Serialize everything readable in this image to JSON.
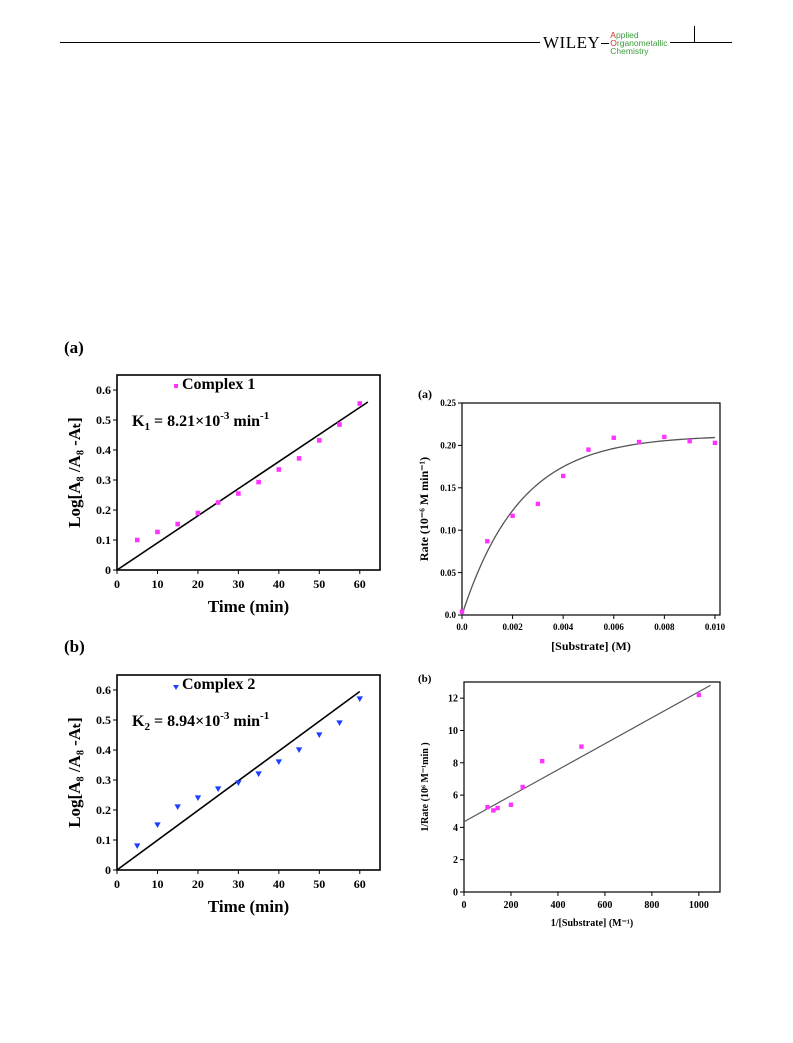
{
  "header": {
    "publisher": "WILEY",
    "journal_lines": [
      {
        "cap": "A",
        "rest": "pplied"
      },
      {
        "cap": "O",
        "rest": "rganometallic"
      },
      {
        "cap": "",
        "rest": "Chemistry"
      }
    ]
  },
  "chart_data": [
    {
      "panel_label": "(a)",
      "type": "scatter",
      "xlabel": "Time (min)",
      "ylabel": "Log[A₈ /A₈ -Aₜ]",
      "xlim": [
        0,
        65
      ],
      "ylim": [
        0,
        0.65
      ],
      "xticks": [
        0,
        10,
        20,
        30,
        40,
        50,
        60
      ],
      "yticks": [
        0,
        0.1,
        0.2,
        0.3,
        0.4,
        0.5,
        0.6
      ],
      "ytick_labels": [
        "0",
        "0.1",
        "0.2",
        "0.3",
        "0.4",
        "0.5",
        "0.6"
      ],
      "legend": "Complex 1",
      "annotation": {
        "prefix": "K",
        "sub": "1",
        "middle": " = 8.21×10",
        "sup": "-3",
        "suffix": " min",
        "sup2": "-1"
      },
      "series": [
        {
          "name": "Complex 1",
          "marker": "square",
          "color": "#ff33ff",
          "x": [
            5,
            10,
            15,
            20,
            25,
            30,
            35,
            40,
            45,
            50,
            55,
            60
          ],
          "y": [
            0.1,
            0.127,
            0.153,
            0.19,
            0.225,
            0.255,
            0.293,
            0.335,
            0.372,
            0.432,
            0.485,
            0.555
          ]
        }
      ],
      "fit_line": {
        "x": [
          0,
          62
        ],
        "y": [
          0.0,
          0.56
        ]
      }
    },
    {
      "panel_label": "(b)",
      "type": "scatter",
      "xlabel": "Time (min)",
      "ylabel": "Log[A₈ /A₈ -Aₜ]",
      "xlim": [
        0,
        65
      ],
      "ylim": [
        0,
        0.65
      ],
      "xticks": [
        0,
        10,
        20,
        30,
        40,
        50,
        60
      ],
      "yticks": [
        0,
        0.1,
        0.2,
        0.3,
        0.4,
        0.5,
        0.6
      ],
      "ytick_labels": [
        "0",
        "0.1",
        "0.2",
        "0.3",
        "0.4",
        "0.5",
        "0.6"
      ],
      "legend": "Complex 2",
      "annotation": {
        "prefix": "K",
        "sub": "2",
        "middle": " = 8.94×10",
        "sup": "-3",
        "suffix": " min",
        "sup2": "-1"
      },
      "series": [
        {
          "name": "Complex 2",
          "marker": "triangle-down",
          "color": "#1a3fff",
          "x": [
            5,
            10,
            15,
            20,
            25,
            30,
            35,
            40,
            45,
            50,
            55,
            60
          ],
          "y": [
            0.08,
            0.15,
            0.21,
            0.24,
            0.27,
            0.29,
            0.32,
            0.36,
            0.4,
            0.45,
            0.49,
            0.57
          ]
        }
      ],
      "fit_line": {
        "x": [
          0,
          60
        ],
        "y": [
          0.0,
          0.595
        ]
      }
    },
    {
      "panel_label": "(a)",
      "type": "scatter",
      "xlabel": "[Substrate] (M)",
      "ylabel": "Rate (10⁻⁶ M min⁻¹)",
      "xlim": [
        0,
        0.0102
      ],
      "ylim": [
        0,
        0.25
      ],
      "xticks": [
        0,
        0.002,
        0.004,
        0.006,
        0.008,
        0.01
      ],
      "xtick_labels": [
        "0.0",
        "0.002",
        "0.004",
        "0.006",
        "0.008",
        "0.010"
      ],
      "yticks": [
        0,
        0.05,
        0.1,
        0.15,
        0.2,
        0.25
      ],
      "ytick_labels": [
        "0.0",
        "0.05",
        "0.10",
        "0.15",
        "0.20",
        "0.25"
      ],
      "series": [
        {
          "name": "",
          "marker": "square",
          "color": "#ff33ff",
          "x": [
            0.0,
            0.001,
            0.002,
            0.003,
            0.004,
            0.005,
            0.006,
            0.007,
            0.008,
            0.009,
            0.01
          ],
          "y": [
            0.004,
            0.087,
            0.117,
            0.131,
            0.164,
            0.195,
            0.209,
            0.204,
            0.21,
            0.205,
            0.203
          ]
        }
      ],
      "fit_curve": {
        "type": "saturation",
        "vmax": 0.212,
        "k": 435,
        "x_range": [
          0,
          0.01
        ]
      }
    },
    {
      "panel_label": "(b)",
      "type": "scatter",
      "xlabel": "1/[Substrate] (M⁻¹)",
      "ylabel": "1/Rate (10⁶ M⁻¹min )",
      "xlim": [
        0,
        1090
      ],
      "ylim": [
        0,
        13
      ],
      "xticks": [
        0,
        200,
        400,
        600,
        800,
        1000
      ],
      "yticks": [
        0,
        2,
        4,
        6,
        8,
        10,
        12
      ],
      "series": [
        {
          "name": "",
          "marker": "square",
          "color": "#ff33ff",
          "x": [
            100,
            125,
            143,
            200,
            250,
            333,
            500,
            1000
          ],
          "y": [
            5.25,
            5.05,
            5.2,
            5.4,
            6.5,
            8.1,
            9.0,
            12.2
          ]
        }
      ],
      "fit_line": {
        "x": [
          0,
          1050
        ],
        "y": [
          4.35,
          12.8
        ]
      }
    }
  ]
}
